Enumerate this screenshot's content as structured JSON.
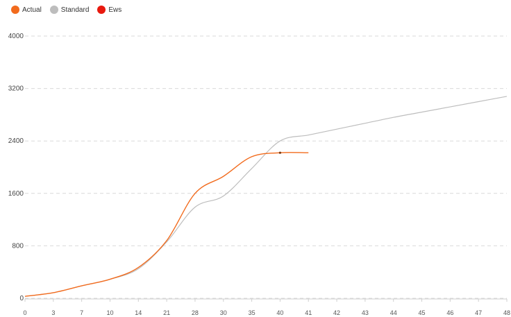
{
  "chart_data": {
    "type": "line",
    "title": "",
    "xlabel": "",
    "ylabel": "",
    "grid": true,
    "legend_position": "top-left",
    "ylim": [
      0,
      4000
    ],
    "yticks": [
      0,
      800,
      1600,
      2400,
      3200,
      4000
    ],
    "x_tick_labels": [
      "0",
      "3",
      "7",
      "10",
      "14",
      "21",
      "28",
      "30",
      "35",
      "40",
      "41",
      "42",
      "43",
      "44",
      "45",
      "46",
      "47",
      "48"
    ],
    "series": [
      {
        "name": "Actual",
        "color": "#f26b1d",
        "values": [
          30,
          85,
          190,
          290,
          470,
          880,
          1600,
          1860,
          2160,
          2220,
          2220
        ]
      },
      {
        "name": "Standard",
        "color": "#bdbdbd",
        "values": [
          30,
          85,
          190,
          290,
          450,
          860,
          1390,
          1560,
          1980,
          2400,
          2490,
          2580,
          2670,
          2760,
          2840,
          2920,
          3000,
          3080
        ]
      },
      {
        "name": "Ews",
        "color": "#e8190e",
        "values": []
      }
    ]
  }
}
